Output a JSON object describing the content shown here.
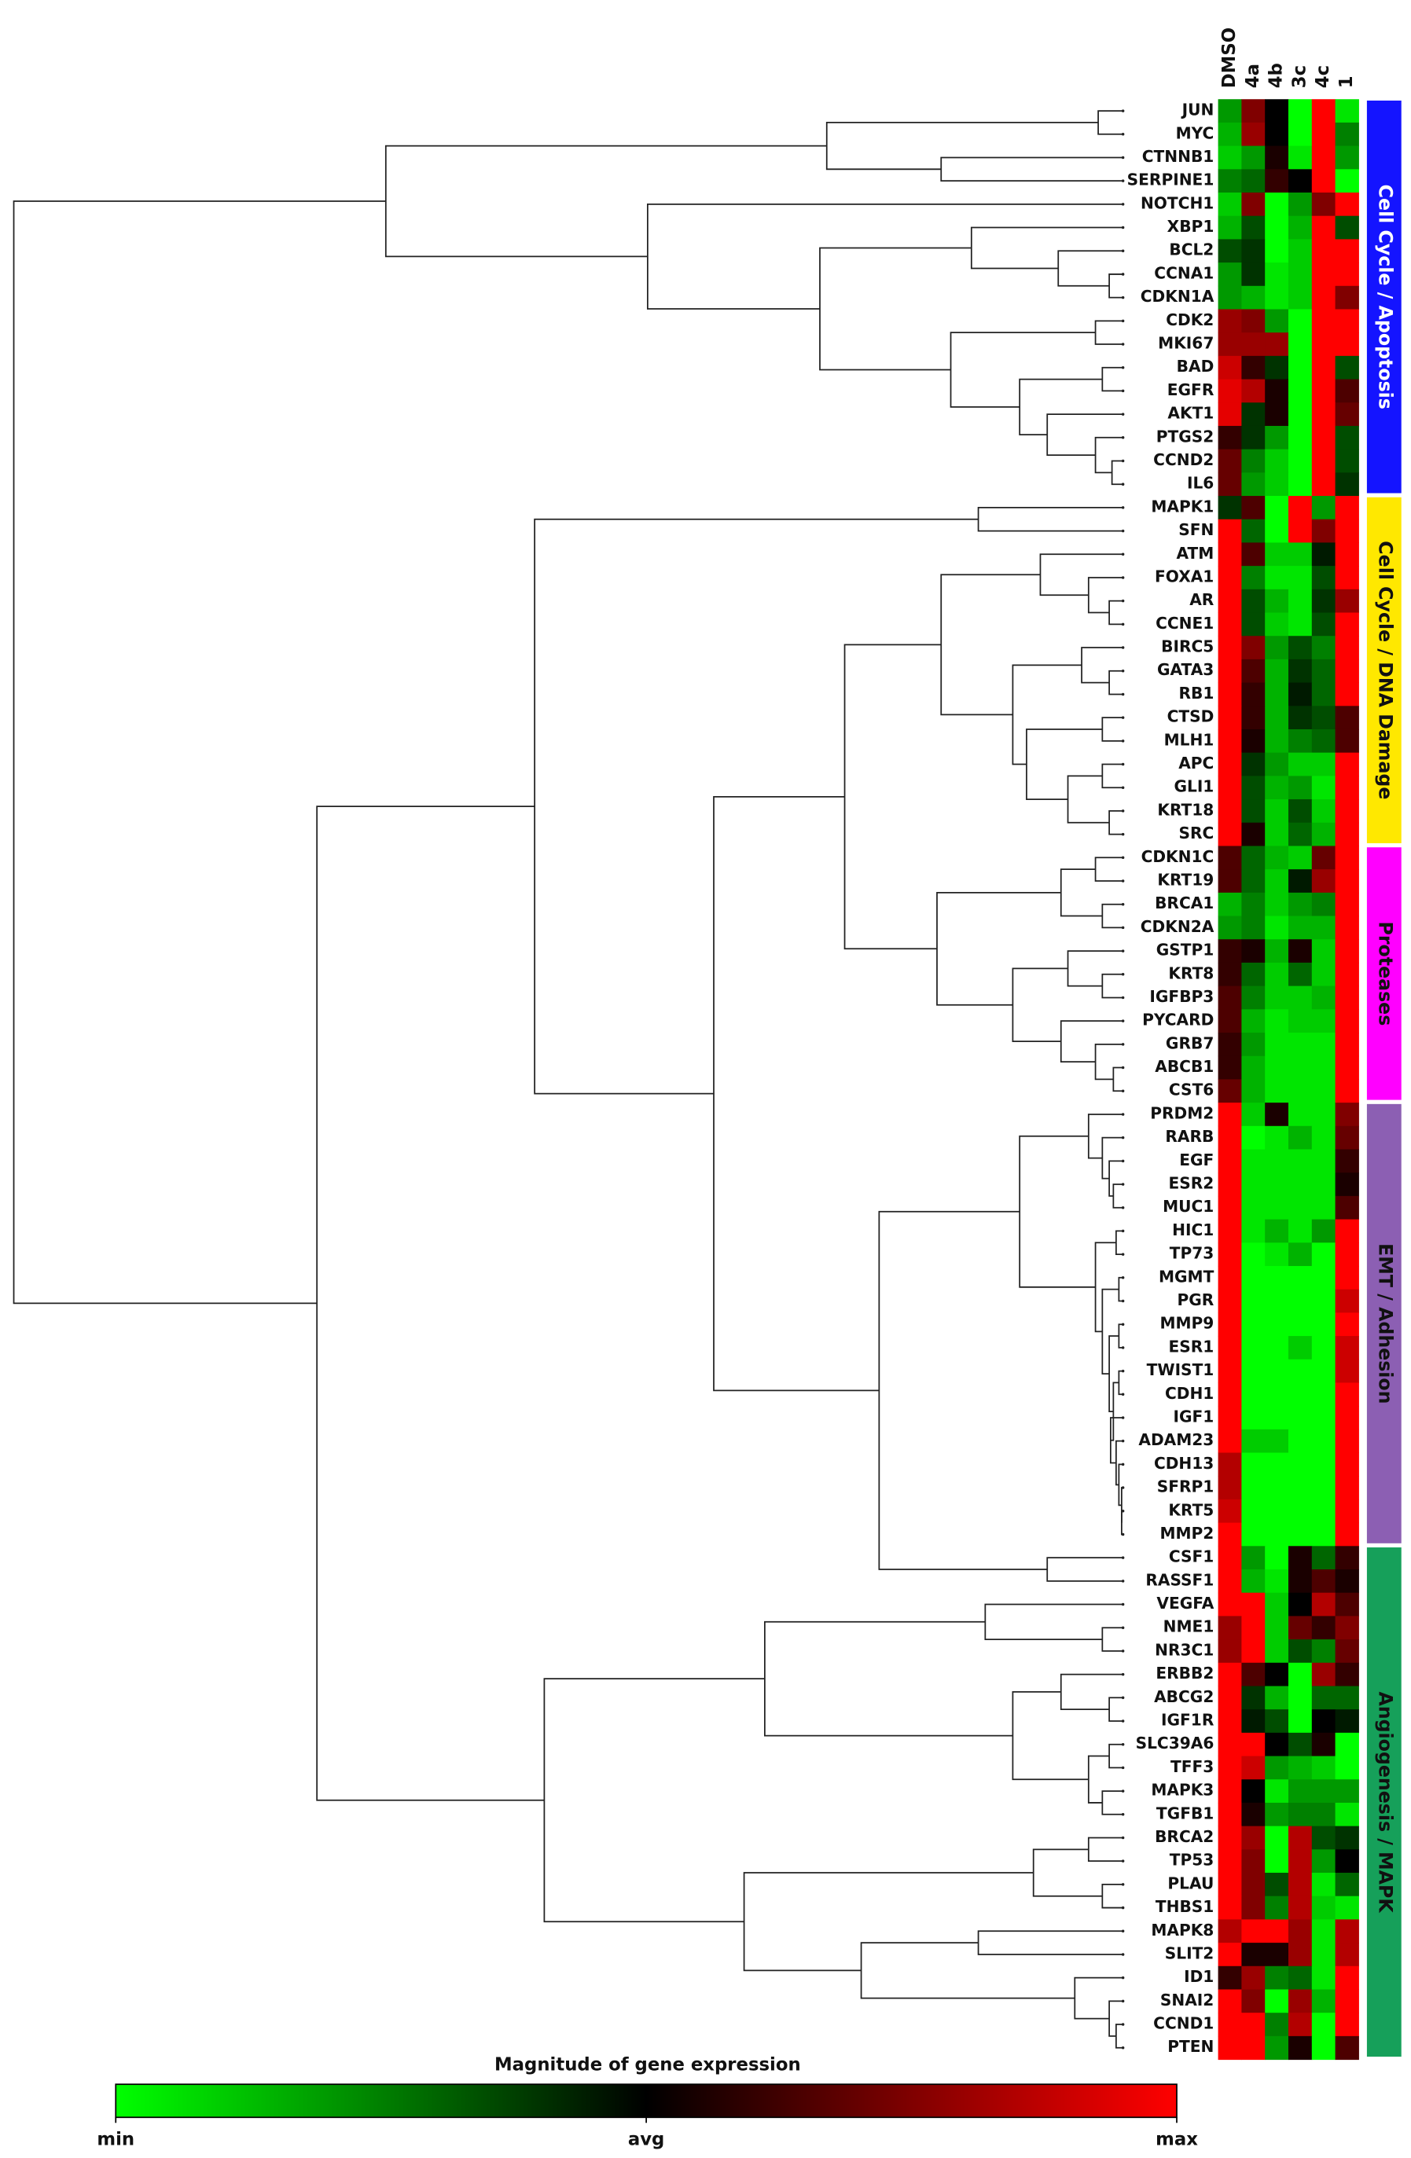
{
  "chart_data": {
    "type": "heatmap",
    "colorbar_title": "Magnitude of gene expression",
    "columns": [
      "DMSO",
      "4a",
      "4b",
      "3c",
      "4c",
      "1"
    ],
    "rows": [
      "JUN",
      "MYC",
      "CTNNB1",
      "SERPINE1",
      "NOTCH1",
      "XBP1",
      "BCL2",
      "CCNA1",
      "CDKN1A",
      "CDK2",
      "MKI67",
      "BAD",
      "EGFR",
      "AKT1",
      "PTGS2",
      "CCND2",
      "IL6",
      "MAPK1",
      "SFN",
      "ATM",
      "FOXA1",
      "AR",
      "CCNE1",
      "BIRC5",
      "GATA3",
      "RB1",
      "CTSD",
      "MLH1",
      "APC",
      "GLI1",
      "KRT18",
      "SRC",
      "CDKN1C",
      "KRT19",
      "BRCA1",
      "CDKN2A",
      "GSTP1",
      "KRT8",
      "IGFBP3",
      "PYCARD",
      "GRB7",
      "ABCB1",
      "CST6",
      "PRDM2",
      "RARB",
      "EGF",
      "ESR2",
      "MUC1",
      "HIC1",
      "TP73",
      "MGMT",
      "PGR",
      "MMP9",
      "ESR1",
      "TWIST1",
      "CDH1",
      "IGF1",
      "ADAM23",
      "CDH13",
      "SFRP1",
      "KRT5",
      "MMP2",
      "CSF1",
      "RASSF1",
      "VEGFA",
      "NME1",
      "NR3C1",
      "ERBB2",
      "ABCG2",
      "IGF1R",
      "SLC39A6",
      "TFF3",
      "MAPK3",
      "TGFB1",
      "BRCA2",
      "TP53",
      "PLAU",
      "THBS1",
      "MAPK8",
      "SLIT2",
      "ID1",
      "SNAI2",
      "CCND1",
      "PTEN"
    ],
    "values": [
      [
        -0.6,
        0.5,
        0,
        -1,
        1,
        -0.9
      ],
      [
        -0.7,
        0.6,
        0,
        -1,
        1,
        -0.5
      ],
      [
        -0.8,
        -0.6,
        0.1,
        -0.9,
        1,
        -0.6
      ],
      [
        -0.5,
        -0.4,
        0.2,
        0,
        1,
        -1
      ],
      [
        -0.8,
        0.5,
        -1,
        -0.6,
        0.5,
        1
      ],
      [
        -0.7,
        -0.3,
        -1,
        -0.7,
        1,
        -0.3
      ],
      [
        -0.3,
        -0.2,
        -1,
        -0.8,
        1,
        1
      ],
      [
        -0.6,
        -0.2,
        -0.9,
        -0.8,
        1,
        1
      ],
      [
        -0.6,
        -0.7,
        -0.9,
        -0.8,
        1,
        0.5
      ],
      [
        0.6,
        0.5,
        -0.6,
        -1,
        1,
        1
      ],
      [
        0.6,
        0.6,
        0.6,
        -1,
        1,
        1
      ],
      [
        0.8,
        0.2,
        -0.2,
        -1,
        1,
        -0.3
      ],
      [
        0.9,
        0.7,
        0.1,
        -1,
        1,
        0.3
      ],
      [
        0.9,
        -0.2,
        0.1,
        -1,
        1,
        0.4
      ],
      [
        0.2,
        -0.2,
        -0.6,
        -1,
        1,
        -0.3
      ],
      [
        0.4,
        -0.5,
        -0.8,
        -1,
        1,
        -0.3
      ],
      [
        0.4,
        -0.6,
        -0.8,
        -1,
        1,
        -0.2
      ],
      [
        -0.2,
        0.3,
        -1,
        1,
        -0.6,
        1
      ],
      [
        1,
        -0.4,
        -1,
        1,
        0.5,
        1
      ],
      [
        1,
        0.3,
        -0.8,
        -0.8,
        -0.1,
        1
      ],
      [
        1,
        -0.5,
        -0.9,
        -0.9,
        -0.3,
        1
      ],
      [
        1,
        -0.3,
        -0.7,
        -0.9,
        -0.2,
        0.6
      ],
      [
        1,
        -0.3,
        -0.8,
        -0.9,
        -0.3,
        1
      ],
      [
        1,
        0.5,
        -0.6,
        -0.3,
        -0.5,
        1
      ],
      [
        1,
        0.3,
        -0.7,
        -0.2,
        -0.4,
        1
      ],
      [
        1,
        0.2,
        -0.7,
        -0.1,
        -0.4,
        1
      ],
      [
        1,
        0.2,
        -0.7,
        -0.2,
        -0.3,
        0.3
      ],
      [
        1,
        0.1,
        -0.7,
        -0.5,
        -0.4,
        0.3
      ],
      [
        1,
        -0.2,
        -0.6,
        -0.8,
        -0.8,
        1
      ],
      [
        1,
        -0.3,
        -0.7,
        -0.6,
        -0.9,
        1
      ],
      [
        1,
        -0.3,
        -0.8,
        -0.3,
        -0.8,
        1
      ],
      [
        1,
        0.1,
        -0.8,
        -0.4,
        -0.7,
        1
      ],
      [
        0.3,
        -0.4,
        -0.7,
        -0.8,
        0.4,
        1
      ],
      [
        0.3,
        -0.4,
        -0.8,
        -0.1,
        0.6,
        1
      ],
      [
        -0.7,
        -0.5,
        -0.8,
        -0.6,
        -0.5,
        1
      ],
      [
        -0.6,
        -0.5,
        -0.9,
        -0.7,
        -0.7,
        1
      ],
      [
        0.2,
        0.1,
        -0.7,
        0.1,
        -0.8,
        1
      ],
      [
        0.2,
        -0.4,
        -0.8,
        -0.4,
        -0.8,
        1
      ],
      [
        0.3,
        -0.5,
        -0.8,
        -0.8,
        -0.7,
        1
      ],
      [
        0.3,
        -0.7,
        -0.9,
        -0.8,
        -0.8,
        1
      ],
      [
        0.2,
        -0.6,
        -0.9,
        -0.9,
        -0.9,
        1
      ],
      [
        0.2,
        -0.7,
        -0.9,
        -0.9,
        -0.9,
        1
      ],
      [
        0.4,
        -0.7,
        -0.9,
        -0.9,
        -0.9,
        1
      ],
      [
        1,
        -0.8,
        0.1,
        -0.9,
        -0.9,
        0.5
      ],
      [
        1,
        -1,
        -0.9,
        -0.7,
        -0.9,
        0.4
      ],
      [
        1,
        -0.9,
        -0.9,
        -0.9,
        -0.9,
        0.2
      ],
      [
        1,
        -0.9,
        -0.9,
        -0.9,
        -0.9,
        0.1
      ],
      [
        1,
        -0.9,
        -0.9,
        -0.9,
        -0.9,
        0.3
      ],
      [
        1,
        -0.9,
        -0.7,
        -0.9,
        -0.6,
        1
      ],
      [
        1,
        -1,
        -0.9,
        -0.7,
        -1,
        1
      ],
      [
        1,
        -1,
        -1,
        -1,
        -1,
        1
      ],
      [
        1,
        -1,
        -1,
        -1,
        -1,
        0.8
      ],
      [
        1,
        -1,
        -1,
        -1,
        -1,
        1
      ],
      [
        1,
        -1,
        -1,
        -0.8,
        -1,
        0.8
      ],
      [
        1,
        -1,
        -1,
        -1,
        -1,
        0.8
      ],
      [
        1,
        -1,
        -1,
        -1,
        -1,
        1
      ],
      [
        1,
        -1,
        -1,
        -1,
        -1,
        1
      ],
      [
        1,
        -0.8,
        -0.8,
        -1,
        -1,
        1
      ],
      [
        0.7,
        -1,
        -1,
        -1,
        -1,
        1
      ],
      [
        0.7,
        -1,
        -1,
        -1,
        -1,
        1
      ],
      [
        0.8,
        -1,
        -1,
        -1,
        -1,
        1
      ],
      [
        1,
        -1,
        -1,
        -1,
        -1,
        1
      ],
      [
        1,
        -0.6,
        -1,
        0.1,
        -0.4,
        0.2
      ],
      [
        1,
        -0.7,
        -0.9,
        0.1,
        0.3,
        0.1
      ],
      [
        1,
        1,
        -0.8,
        0,
        0.7,
        0.3
      ],
      [
        0.6,
        1,
        -0.8,
        0.4,
        0.2,
        0.5
      ],
      [
        0.6,
        1,
        -0.8,
        -0.3,
        -0.5,
        0.4
      ],
      [
        1,
        0.3,
        0,
        -1,
        0.6,
        0.2
      ],
      [
        1,
        -0.2,
        -0.7,
        -1,
        -0.4,
        -0.4
      ],
      [
        1,
        -0.1,
        -0.3,
        -1,
        0,
        -0.1
      ],
      [
        1,
        1,
        0,
        -0.3,
        0.1,
        -1
      ],
      [
        1,
        0.8,
        -0.6,
        -0.7,
        -0.8,
        -1
      ],
      [
        1,
        0,
        -0.9,
        -0.6,
        -0.6,
        -0.6
      ],
      [
        1,
        0.1,
        -0.6,
        -0.5,
        -0.5,
        -0.9
      ],
      [
        1,
        0.6,
        -1,
        0.7,
        -0.3,
        -0.2
      ],
      [
        1,
        0.5,
        -1,
        0.7,
        -0.6,
        0
      ],
      [
        1,
        0.5,
        -0.3,
        0.7,
        -0.9,
        -0.4
      ],
      [
        1,
        0.5,
        -0.5,
        0.7,
        -0.8,
        -0.9
      ],
      [
        0.7,
        1,
        1,
        0.6,
        -0.9,
        0.7
      ],
      [
        1,
        0.1,
        0.1,
        0.6,
        -0.9,
        0.7
      ],
      [
        0.2,
        0.6,
        -0.5,
        -0.4,
        -0.9,
        1
      ],
      [
        1,
        0.5,
        -1,
        0.6,
        -0.7,
        1
      ],
      [
        1,
        1,
        -0.5,
        0.7,
        -1,
        1
      ],
      [
        1,
        1,
        -0.6,
        0.1,
        -1,
        0.3
      ]
    ],
    "zlim": [
      -1,
      1
    ],
    "zticks": [
      {
        "value": -1,
        "label": "min"
      },
      {
        "value": 0,
        "label": "avg"
      },
      {
        "value": 1,
        "label": "max"
      }
    ],
    "colors": [
      "#00ff00",
      "#000000",
      "#ff0000"
    ],
    "groups": [
      {
        "name": "Cell Cycle / Apoptosis",
        "size": 17,
        "color": "#1414ff",
        "label_color": "#ffffff"
      },
      {
        "name": "Cell Cycle / DNA Damage",
        "size": 15,
        "color": "#ffe800",
        "label_color": "#111111"
      },
      {
        "name": "Proteases",
        "size": 11,
        "color": "#ff00ff",
        "label_color": "#111111"
      },
      {
        "name": "EMT / Adhesion",
        "size": 19,
        "color": "#8c5fb3",
        "label_color": "#111111"
      },
      {
        "name": "Angiogenesis / MAPK",
        "size": 22,
        "color": "#16a05a",
        "label_color": "#111111"
      }
    ]
  }
}
